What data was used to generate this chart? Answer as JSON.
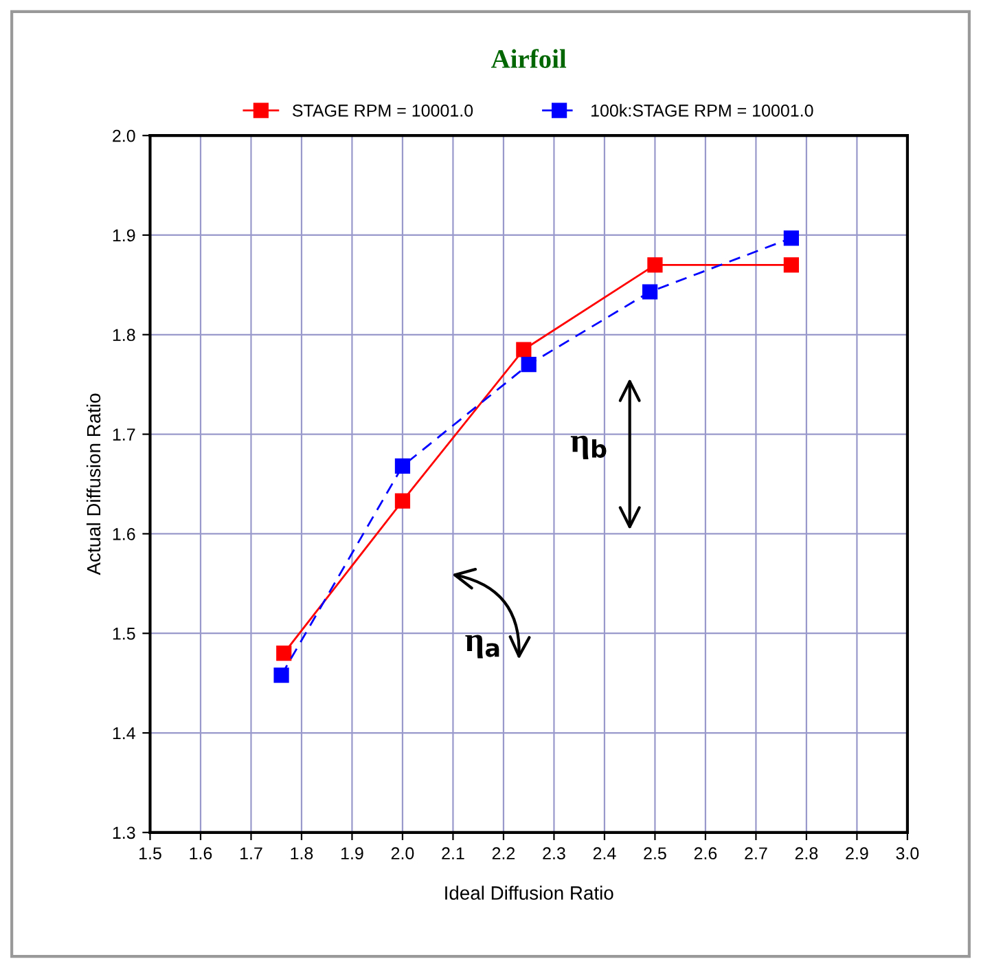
{
  "chart_data": {
    "type": "line",
    "title": "Airfoil",
    "xlabel": "Ideal Diffusion Ratio",
    "ylabel": "Actual Diffusion Ratio",
    "series": [
      {
        "name": "STAGE RPM = 10001.0",
        "color": "#ff0000",
        "line_style": "solid",
        "marker": "square",
        "x": [
          1.765,
          2.0,
          2.24,
          2.5,
          2.77
        ],
        "values": [
          1.48,
          1.633,
          1.785,
          1.87,
          1.87
        ]
      },
      {
        "name": "100k:STAGE RPM = 10001.0",
        "color": "#0000ff",
        "line_style": "dashed",
        "marker": "square",
        "x": [
          1.76,
          2.0,
          2.25,
          2.49,
          2.77
        ],
        "values": [
          1.458,
          1.668,
          1.77,
          1.843,
          1.897
        ]
      }
    ],
    "xlim": [
      1.5,
      3.0
    ],
    "xticks": [
      1.5,
      1.6,
      1.7,
      1.8,
      1.9,
      {
        "value": 2.0,
        "label": "2.0"
      },
      2.1,
      2.2,
      2.3,
      2.4,
      2.5,
      2.6,
      2.7,
      2.8,
      2.9,
      {
        "value": 3.0,
        "label": "3.0"
      }
    ],
    "ylim": [
      1.3,
      2.0
    ],
    "yticks": [
      1.3,
      1.4,
      1.5,
      1.6,
      1.7,
      1.8,
      1.9,
      {
        "value": 2.0,
        "label": "2.0"
      }
    ],
    "grid": true,
    "legend": "top",
    "annotations": [
      "η$_{b}$",
      "η$_{a}$"
    ]
  }
}
